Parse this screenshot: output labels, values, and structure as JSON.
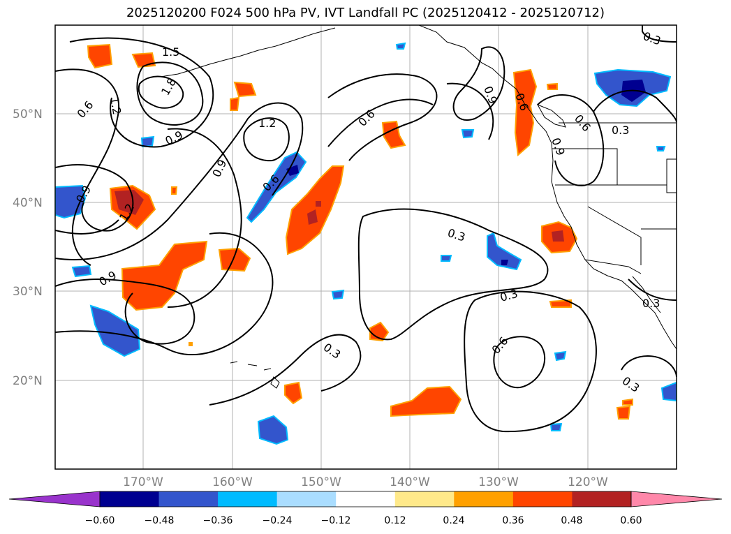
{
  "title": "2025120200 F024 500 hPa PV, IVT Landfall PC (2025120412 - 2025120712)",
  "lat_labels": [
    "50°N",
    "40°N",
    "30°N",
    "20°N"
  ],
  "lon_labels": [
    "170°W",
    "160°W",
    "150°W",
    "140°W",
    "130°W",
    "120°W"
  ],
  "contour_labels": [
    "1.5",
    "1.2",
    "1.8",
    "0.6",
    "0.9",
    "1.2",
    "0.9",
    "0.6",
    "0.6",
    "0.9",
    "1.2",
    "0.9",
    "0.3",
    "0.3",
    "0.6",
    "0.3",
    "0.3",
    "0.9",
    "0.6",
    "0.6",
    "0.3",
    "0.3",
    "0.3",
    "0.9"
  ],
  "colorbar": {
    "ticks": [
      "−0.60",
      "−0.48",
      "−0.36",
      "−0.24",
      "−0.12",
      "0.12",
      "0.24",
      "0.36",
      "0.48",
      "0.60"
    ],
    "colors": [
      "#9933cc",
      "#000090",
      "#3355cc",
      "#00bbff",
      "#aaddff",
      "#ffffff",
      "#ffe98a",
      "#ffa000",
      "#ff4500",
      "#b22222",
      "#ff88aa"
    ]
  },
  "fill_colors": {
    "blue_light": "#aaddff",
    "blue_cyan": "#00bbff",
    "blue_mid": "#3355cc",
    "blue_dark": "#000090",
    "red_light": "#ffe98a",
    "red_orange": "#ffa000",
    "red_mid": "#ff4500",
    "red_dark": "#b22222"
  }
}
